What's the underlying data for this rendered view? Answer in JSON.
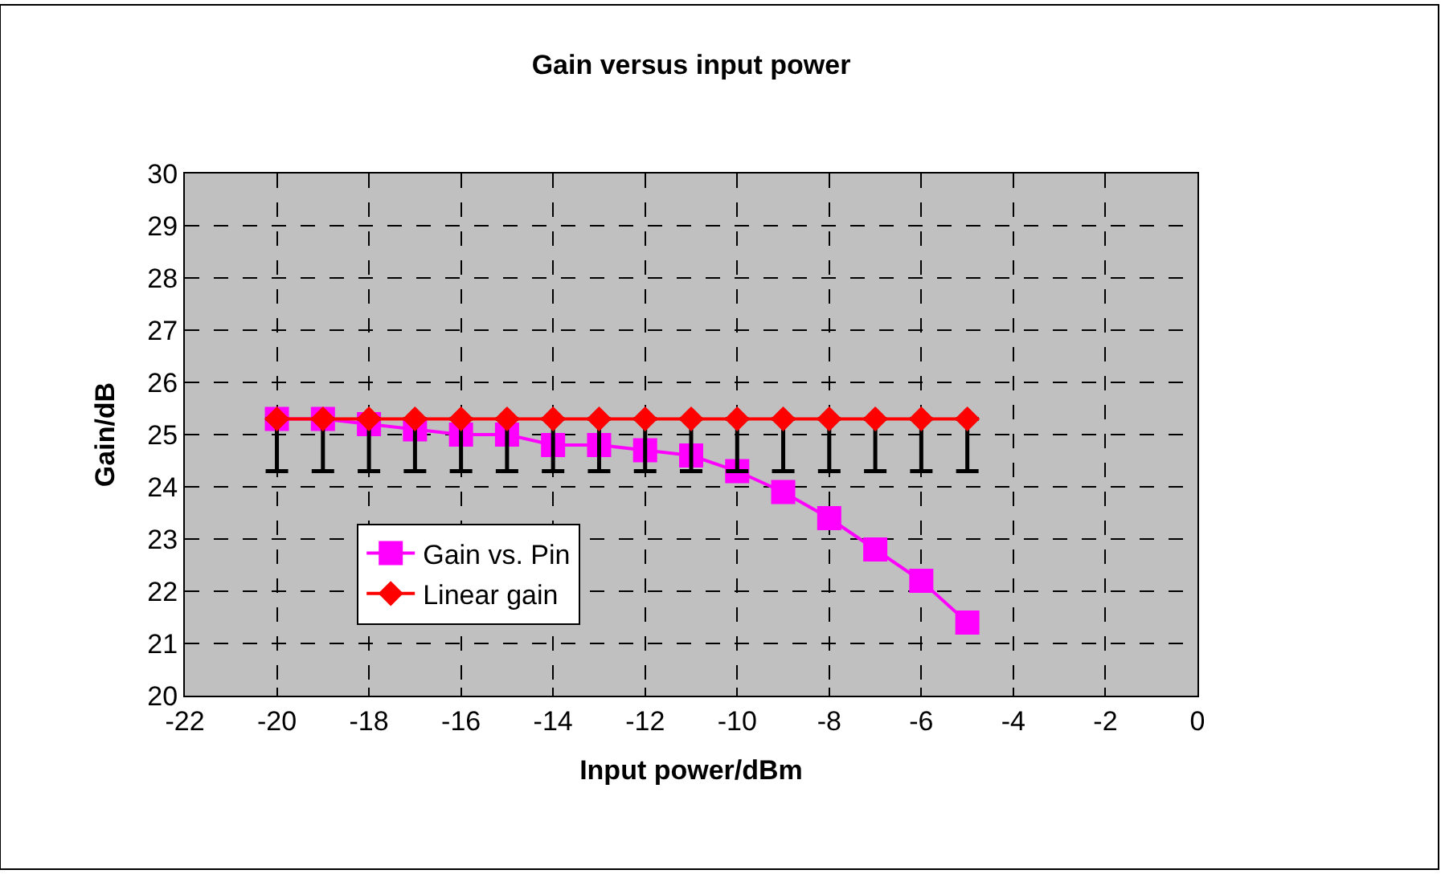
{
  "chart_data": {
    "type": "line",
    "title": "Gain versus input power",
    "xlabel": "Input power/dBm",
    "ylabel": "Gain/dB",
    "x": [
      -20,
      -19,
      -18,
      -17,
      -16,
      -15,
      -14,
      -13,
      -12,
      -11,
      -10,
      -9,
      -8,
      -7,
      -6,
      -5
    ],
    "series": [
      {
        "name": "Gain vs. Pin",
        "color": "#ff00ff",
        "marker": "square",
        "values": [
          25.3,
          25.3,
          25.2,
          25.1,
          25.0,
          25.0,
          24.8,
          24.8,
          24.7,
          24.6,
          24.3,
          23.9,
          23.4,
          22.8,
          22.2,
          21.4
        ]
      },
      {
        "name": "Linear gain",
        "color": "#ff0000",
        "marker": "diamond",
        "values": [
          25.3,
          25.3,
          25.3,
          25.3,
          25.3,
          25.3,
          25.3,
          25.3,
          25.3,
          25.3,
          25.3,
          25.3,
          25.3,
          25.3,
          25.3,
          25.3
        ],
        "errors": [
          [
            24.3,
            25.3
          ],
          [
            24.3,
            25.3
          ],
          [
            24.3,
            25.3
          ],
          [
            24.3,
            25.3
          ],
          [
            24.3,
            25.3
          ],
          [
            24.3,
            25.3
          ],
          [
            24.3,
            25.3
          ],
          [
            24.3,
            25.3
          ],
          [
            24.3,
            25.3
          ],
          [
            24.3,
            25.3
          ],
          [
            24.3,
            25.3
          ],
          [
            24.3,
            25.3
          ],
          [
            24.3,
            25.3
          ],
          [
            24.3,
            25.3
          ],
          [
            24.3,
            25.3
          ],
          [
            24.3,
            25.3
          ]
        ]
      }
    ],
    "xlim": [
      -22,
      0
    ],
    "xticks": [
      -22,
      -20,
      -18,
      -16,
      -14,
      -12,
      -10,
      -8,
      -6,
      -4,
      -2,
      0
    ],
    "ylim": [
      20,
      30
    ],
    "yticks": [
      20,
      21,
      22,
      23,
      24,
      25,
      26,
      27,
      28,
      29,
      30
    ],
    "grid": true,
    "legend": "left",
    "line_style": "solid"
  }
}
